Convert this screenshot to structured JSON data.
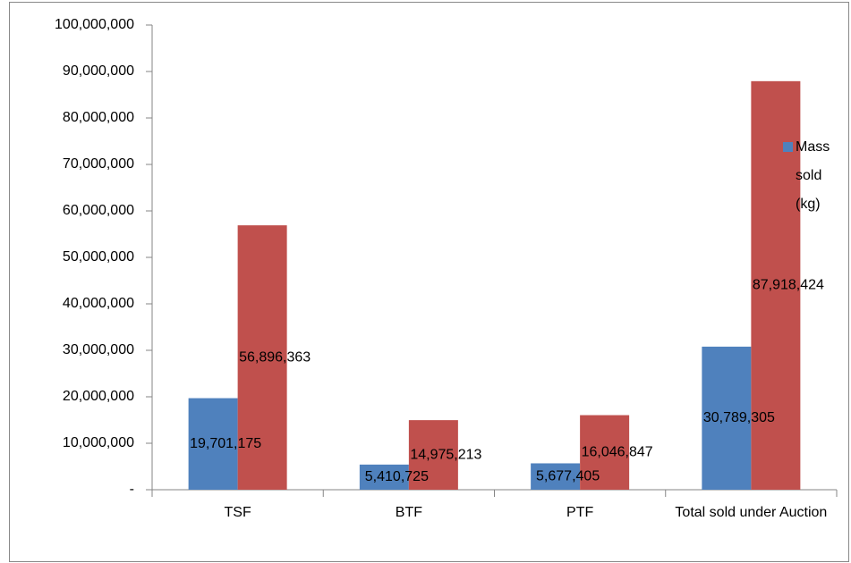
{
  "chart_data": {
    "type": "bar",
    "categories": [
      "TSF",
      "BTF",
      "PTF",
      "Total sold under Auction"
    ],
    "series": [
      {
        "name": "Mass sold (kg)",
        "color": "#4f81bd",
        "values": [
          19701175,
          5410725,
          5677405,
          30789305
        ],
        "value_labels": [
          "19,701,175",
          "5,410,725",
          "5,677,405",
          "30,789,305"
        ]
      },
      {
        "name": null,
        "color": "#c0504d",
        "values": [
          56896363,
          14975213,
          16046847,
          87918424
        ],
        "value_labels": [
          "56,896,363",
          "14,975,213",
          "16,046,847",
          "87,918,424"
        ]
      }
    ],
    "ylim": [
      0,
      100000000
    ],
    "yticks": [
      {
        "value": 0,
        "label": "-"
      },
      {
        "value": 10000000,
        "label": "10,000,000"
      },
      {
        "value": 20000000,
        "label": "20,000,000"
      },
      {
        "value": 30000000,
        "label": "30,000,000"
      },
      {
        "value": 40000000,
        "label": "40,000,000"
      },
      {
        "value": 50000000,
        "label": "50,000,000"
      },
      {
        "value": 60000000,
        "label": "60,000,000"
      },
      {
        "value": 70000000,
        "label": "70,000,000"
      },
      {
        "value": 80000000,
        "label": "80,000,000"
      },
      {
        "value": 90000000,
        "label": "90,000,000"
      },
      {
        "value": 100000000,
        "label": "100,000,000"
      }
    ],
    "grid": false,
    "legend": "right"
  }
}
